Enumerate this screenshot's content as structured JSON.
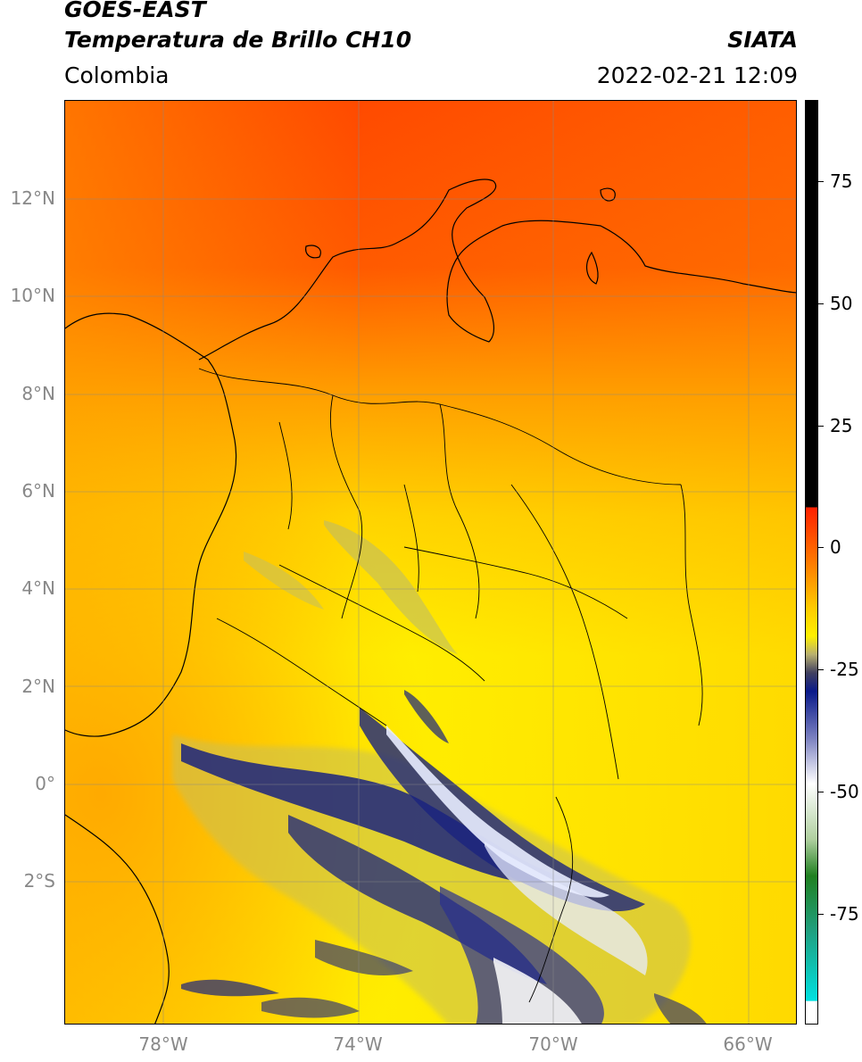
{
  "header": {
    "satellite": "GOES-EAST",
    "product": "Temperatura de Brillo CH10",
    "org": "SIATA",
    "region": "Colombia",
    "datetime": "2022-02-21 12:09"
  },
  "map": {
    "lat_labels": [
      "12°N",
      "10°N",
      "8°N",
      "6°N",
      "4°N",
      "2°N",
      "0°",
      "2°S"
    ],
    "lon_labels": [
      "78°W",
      "74°W",
      "70°W",
      "66°W"
    ],
    "extent": {
      "lon": [
        -80,
        -65
      ],
      "lat": [
        -5,
        14
      ]
    }
  },
  "colorbar": {
    "tick_labels": [
      "75",
      "50",
      "25",
      "0",
      "-25",
      "-50",
      "-75"
    ],
    "tick_values": [
      75,
      50,
      25,
      0,
      -25,
      -50,
      -75
    ],
    "range": [
      -100,
      90
    ],
    "colors": {
      "warm": "#ff3300",
      "mid": "#ffee00",
      "cold": "#1a237e",
      "very_cold": "#ffffff",
      "extreme": "#000000"
    }
  }
}
